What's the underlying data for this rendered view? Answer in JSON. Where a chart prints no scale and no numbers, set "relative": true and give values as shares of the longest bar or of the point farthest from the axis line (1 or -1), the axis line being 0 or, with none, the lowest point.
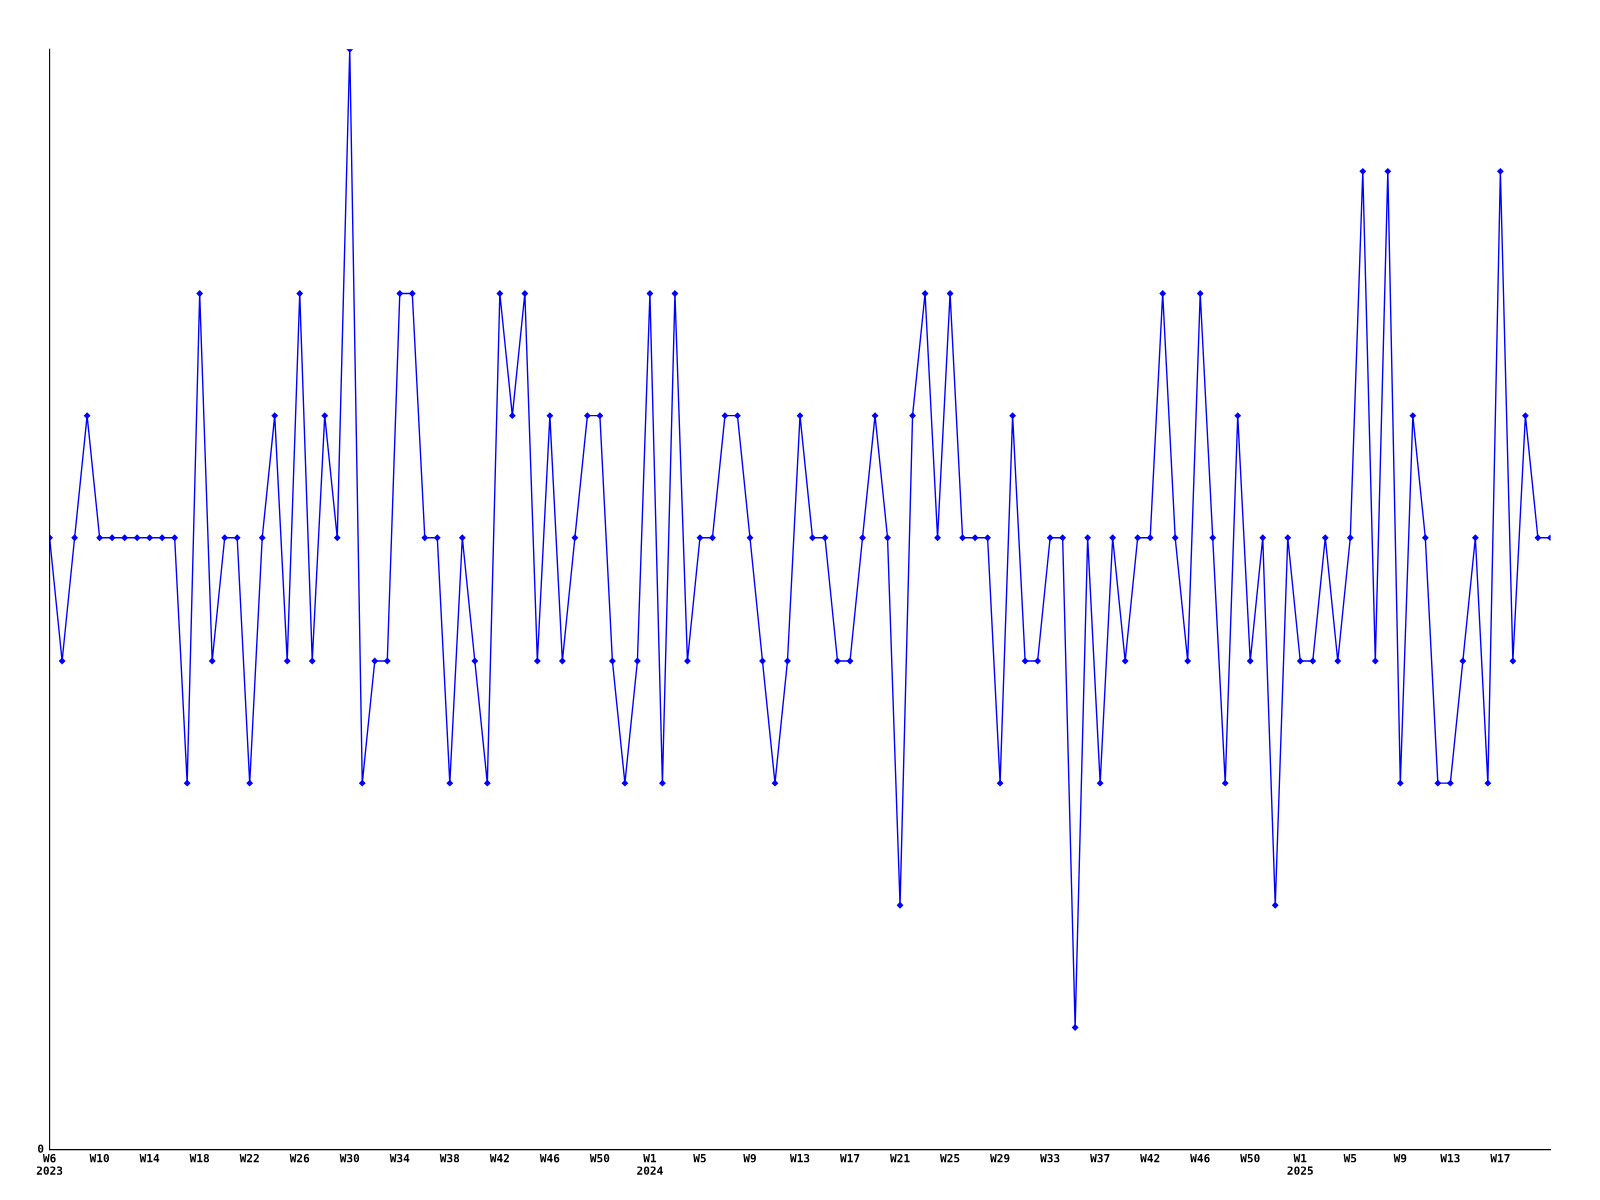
{
  "chart_data": {
    "type": "line",
    "relative": true,
    "marker": "diamond",
    "line_style": "solid",
    "grid": false,
    "legend": false,
    "annotations": [
      "0"
    ],
    "categories": [
      "W6\n2023",
      null,
      null,
      null,
      "W10",
      null,
      null,
      null,
      "W14",
      null,
      null,
      null,
      "W18",
      null,
      null,
      null,
      "W22",
      null,
      null,
      null,
      "W26",
      null,
      null,
      null,
      "W30",
      null,
      null,
      null,
      "W34",
      null,
      null,
      null,
      "W38",
      null,
      null,
      null,
      "W42",
      null,
      null,
      null,
      "W46",
      null,
      null,
      null,
      "W50",
      null,
      null,
      null,
      "W1\n2024",
      null,
      null,
      null,
      "W5",
      null,
      null,
      null,
      "W9",
      null,
      null,
      null,
      "W13",
      null,
      null,
      null,
      "W17",
      null,
      null,
      null,
      "W21",
      null,
      null,
      null,
      "W25",
      null,
      null,
      null,
      "W29",
      null,
      null,
      null,
      "W33",
      null,
      null,
      null,
      "W37",
      null,
      null,
      null,
      "W42",
      null,
      null,
      null,
      "W46",
      null,
      null,
      null,
      "W50",
      null,
      null,
      null,
      "W1\n2025",
      null,
      null,
      null,
      "W5",
      null,
      null,
      null,
      "W9",
      null,
      null,
      null,
      "W13",
      null,
      null,
      null,
      "W17",
      null,
      null,
      null,
      null
    ],
    "series": [
      {
        "color": "#0000ff",
        "values": [
          0.556,
          0.444,
          0.556,
          0.667,
          0.556,
          0.556,
          0.556,
          0.556,
          0.556,
          0.556,
          0.556,
          0.333,
          0.778,
          0.444,
          0.556,
          0.556,
          0.333,
          0.556,
          0.667,
          0.444,
          0.778,
          0.444,
          0.667,
          0.556,
          1,
          0.333,
          0.444,
          0.444,
          0.778,
          0.778,
          0.556,
          0.556,
          0.333,
          0.556,
          0.444,
          0.333,
          0.778,
          0.667,
          0.778,
          0.444,
          0.667,
          0.444,
          0.556,
          0.667,
          0.667,
          0.444,
          0.333,
          0.444,
          0.778,
          0.333,
          0.778,
          0.444,
          0.556,
          0.556,
          0.667,
          0.667,
          0.556,
          0.444,
          0.333,
          0.444,
          0.667,
          0.556,
          0.556,
          0.444,
          0.444,
          0.556,
          0.667,
          0.556,
          0.222,
          0.667,
          0.778,
          0.556,
          0.778,
          0.556,
          0.556,
          0.556,
          0.333,
          0.667,
          0.444,
          0.444,
          0.556,
          0.556,
          0.111,
          0.556,
          0.333,
          0.556,
          0.444,
          0.556,
          0.556,
          0.778,
          0.556,
          0.444,
          0.778,
          0.556,
          0.333,
          0.667,
          0.444,
          0.556,
          0.222,
          0.556,
          0.444,
          0.444,
          0.556,
          0.444,
          0.556,
          0.889,
          0.444,
          0.889,
          0.333,
          0.667,
          0.556,
          0.333,
          0.333,
          0.444,
          0.556,
          0.333,
          0.889,
          0.444,
          0.667,
          0.556,
          0.556
        ]
      }
    ]
  }
}
